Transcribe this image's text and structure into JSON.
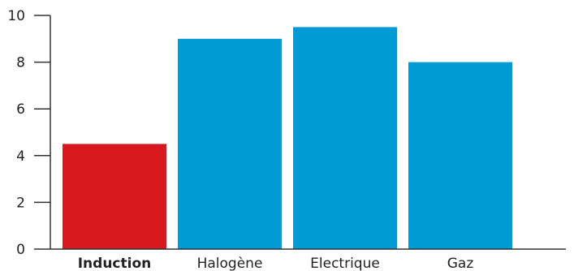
{
  "chart_data": {
    "type": "bar",
    "title": "",
    "xlabel": "",
    "ylabel": "",
    "categories": [
      "Induction",
      "Halogène",
      "Electrique",
      "Gaz"
    ],
    "values": [
      4.5,
      9,
      9.5,
      8
    ],
    "ylim": [
      0,
      10
    ],
    "yticks": [
      0,
      2,
      4,
      6,
      8,
      10
    ],
    "grid": false,
    "legend": "none",
    "highlight_category": "Induction",
    "colors": {
      "highlight": "#d7191f",
      "default": "#009bd5",
      "axis": "#333333",
      "highlight_label": "#d7191f"
    }
  }
}
